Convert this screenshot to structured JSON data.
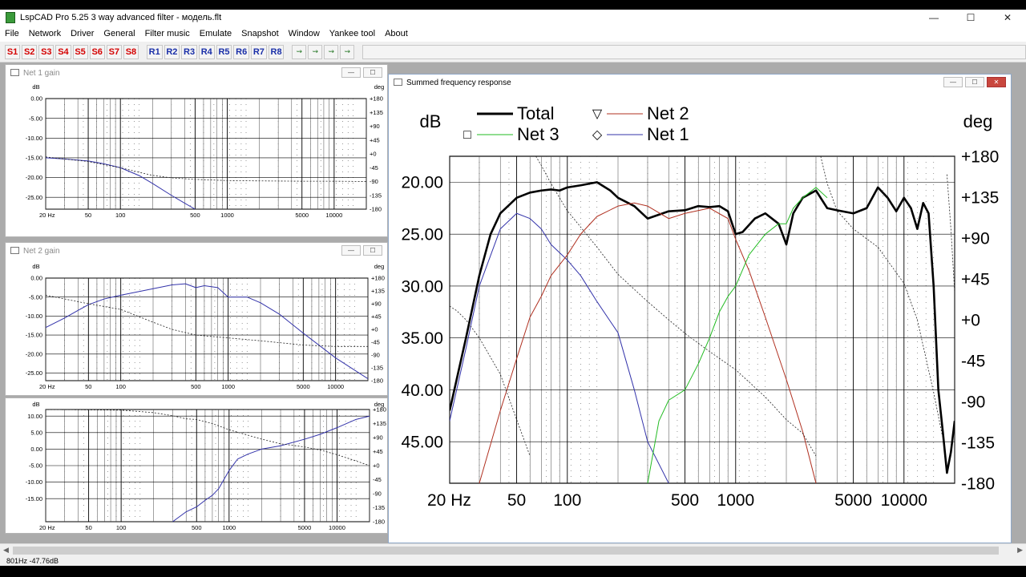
{
  "window": {
    "title": "LspCAD Pro 5.25 3 way advanced filter - модель.flt",
    "min": "—",
    "max": "☐",
    "close": "✕"
  },
  "menu": [
    "File",
    "Network",
    "Driver",
    "General",
    "Filter music",
    "Emulate",
    "Snapshot",
    "Window",
    "Yankee tool",
    "About"
  ],
  "toolbar": {
    "snapshots": [
      "S1",
      "S2",
      "S3",
      "S4",
      "S5",
      "S6",
      "S7",
      "S8"
    ],
    "recalls": [
      "R1",
      "R2",
      "R3",
      "R4",
      "R5",
      "R6",
      "R7",
      "R8"
    ],
    "icon_buttons": [
      "curve-tool-1-icon",
      "curve-tool-2-icon",
      "curve-tool-3-icon",
      "curve-tool-4-icon"
    ]
  },
  "windows": {
    "net1": {
      "title": "Net 1 gain"
    },
    "net2": {
      "title": "Net 2 gain"
    },
    "summed": {
      "title": "Summed frequency response"
    }
  },
  "colors": {
    "total": "#000000",
    "net1": "#3333aa",
    "net2": "#b03020",
    "net3": "#22bb22",
    "phase": "#222222"
  },
  "status": {
    "text": "801Hz  -47.76dB"
  },
  "chart_data": [
    {
      "id": "net1",
      "type": "line",
      "ylabel": "dB",
      "y2label": "deg",
      "x_scale": "log",
      "xlim": [
        20,
        20000
      ],
      "ylim": [
        -28,
        0
      ],
      "y_ticks": [
        "0.00",
        "-5.00",
        "-10.00",
        "-15.00",
        "-20.00",
        "-25.00"
      ],
      "y2_ticks": [
        "+180",
        "+135",
        "+90",
        "+45",
        "+0",
        "-45",
        "-90",
        "-135",
        "-180"
      ],
      "x_ticks": [
        "20 Hz",
        "50",
        "100",
        "500",
        "1000",
        "5000",
        "10000"
      ],
      "series": [
        {
          "role": "gain",
          "x": [
            20,
            30,
            50,
            70,
            100,
            150,
            200,
            300,
            400,
            500
          ],
          "y": [
            -15.0,
            -15.3,
            -15.8,
            -16.5,
            -17.5,
            -19.5,
            -21.5,
            -24.5,
            -26.5,
            -28.0
          ]
        },
        {
          "role": "phase",
          "x": [
            20,
            50,
            100,
            150,
            200,
            300,
            500,
            1000,
            2000,
            5000,
            10000,
            20000
          ],
          "y": [
            -10,
            -25,
            -45,
            -60,
            -70,
            -78,
            -83,
            -87,
            -88,
            -89,
            -89,
            -90
          ]
        }
      ]
    },
    {
      "id": "net2",
      "type": "line",
      "ylabel": "dB",
      "y2label": "deg",
      "x_scale": "log",
      "xlim": [
        20,
        20000
      ],
      "ylim": [
        -27,
        0
      ],
      "y_ticks": [
        "0.00",
        "-5.00",
        "-10.00",
        "-15.00",
        "-20.00",
        "-25.00"
      ],
      "y2_ticks": [
        "+180",
        "+135",
        "+90",
        "+45",
        "+0",
        "-45",
        "-90",
        "-135",
        "-180"
      ],
      "x_ticks": [
        "20 Hz",
        "50",
        "100",
        "500",
        "1000",
        "5000",
        "10000"
      ],
      "series": [
        {
          "role": "gain",
          "x": [
            20,
            30,
            40,
            50,
            70,
            100,
            150,
            200,
            300,
            400,
            500,
            600,
            800,
            1000,
            1500,
            2000,
            3000,
            5000,
            10000,
            20000
          ],
          "y": [
            -13.0,
            -10.5,
            -8.5,
            -7.0,
            -5.5,
            -4.5,
            -3.5,
            -2.8,
            -1.8,
            -1.5,
            -2.5,
            -2.0,
            -2.5,
            -5.0,
            -5.0,
            -6.5,
            -9.5,
            -14.5,
            -21.0,
            -26.5
          ]
        },
        {
          "role": "phase",
          "x": [
            20,
            50,
            100,
            200,
            300,
            500,
            1000,
            2000,
            5000,
            10000,
            20000
          ],
          "y": [
            120,
            90,
            70,
            25,
            0,
            -20,
            -30,
            -40,
            -55,
            -60,
            -60
          ]
        }
      ]
    },
    {
      "id": "net3",
      "type": "line",
      "ylabel": "dB",
      "y2label": "deg",
      "x_scale": "log",
      "xlim": [
        20,
        20000
      ],
      "ylim": [
        -22,
        12
      ],
      "y_ticks": [
        "10.00",
        "5.00",
        "0.00",
        "-5.00",
        "-10.00",
        "-15.00"
      ],
      "y2_ticks": [
        "+180",
        "+135",
        "+90",
        "+45",
        "+0",
        "-45",
        "-90",
        "-135",
        "-180"
      ],
      "x_ticks": [
        "20 Hz",
        "50",
        "100",
        "500",
        "1000",
        "5000",
        "10000"
      ],
      "series": [
        {
          "role": "gain",
          "x": [
            300,
            400,
            500,
            600,
            700,
            800,
            1000,
            1200,
            1500,
            2000,
            3000,
            5000,
            7000,
            10000,
            15000,
            20000
          ],
          "y": [
            -22.0,
            -19.0,
            -17.5,
            -15.5,
            -14.0,
            -12.0,
            -6.5,
            -3.0,
            -1.5,
            0.0,
            1.0,
            3.0,
            4.5,
            6.5,
            9.0,
            10.0
          ]
        },
        {
          "role": "phase",
          "x": [
            20,
            100,
            200,
            300,
            400,
            500,
            700,
            1000,
            2000,
            3000,
            5000,
            7000,
            10000,
            15000,
            20000
          ],
          "y": [
            180,
            178,
            170,
            160,
            150,
            148,
            135,
            115,
            85,
            70,
            60,
            50,
            35,
            15,
            0
          ]
        }
      ]
    },
    {
      "id": "summed",
      "type": "line",
      "ylabel": "dB",
      "y2label": "deg",
      "x_scale": "log",
      "xlim": [
        20,
        20000
      ],
      "ylim": [
        -49,
        -17.5
      ],
      "y_ticks": [
        "20.00",
        "25.00",
        "30.00",
        "35.00",
        "40.00",
        "45.00"
      ],
      "y2_ticks": [
        "+180",
        "+135",
        "+90",
        "+45",
        "+0",
        "-45",
        "-90",
        "-135",
        "-180"
      ],
      "x_ticks": [
        "20 Hz",
        "50",
        "100",
        "500",
        "1000",
        "5000",
        "10000"
      ],
      "legend": [
        {
          "name": "Total",
          "marker": ""
        },
        {
          "name": "Net 2",
          "marker": "▽"
        },
        {
          "name": "Net 3",
          "marker": "□"
        },
        {
          "name": "Net 1",
          "marker": "◇"
        }
      ],
      "series": [
        {
          "name": "Total",
          "x": [
            20,
            25,
            30,
            35,
            40,
            50,
            60,
            70,
            80,
            90,
            100,
            120,
            150,
            180,
            200,
            250,
            300,
            400,
            500,
            600,
            700,
            800,
            900,
            1000,
            1100,
            1300,
            1500,
            1800,
            2000,
            2200,
            2500,
            3000,
            3500,
            4000,
            5000,
            6000,
            7000,
            8000,
            9000,
            10000,
            11000,
            12000,
            13000,
            14000,
            15000,
            16000,
            17000,
            18000,
            19000,
            20000
          ],
          "y": [
            -42,
            -35,
            -29,
            -25,
            -23,
            -21.5,
            -21,
            -20.8,
            -20.7,
            -20.8,
            -20.5,
            -20.3,
            -20.0,
            -20.8,
            -21.5,
            -22.3,
            -23.5,
            -22.8,
            -22.7,
            -22.3,
            -22.4,
            -22.3,
            -22.8,
            -25.0,
            -24.8,
            -23.5,
            -23.0,
            -24.0,
            -26.0,
            -23.0,
            -21.5,
            -20.8,
            -22.5,
            -22.7,
            -23.0,
            -22.5,
            -20.5,
            -21.5,
            -22.8,
            -21.5,
            -22.5,
            -24.5,
            -22.0,
            -23.0,
            -30,
            -40,
            -44,
            -48,
            -46,
            -43
          ]
        },
        {
          "name": "Net 1",
          "x": [
            20,
            25,
            30,
            40,
            50,
            60,
            70,
            80,
            100,
            120,
            150,
            200,
            250,
            300,
            400
          ],
          "y": [
            -43,
            -36,
            -30,
            -24.5,
            -23.0,
            -23.5,
            -24.5,
            -26,
            -27.5,
            -29,
            -31.5,
            -34.5,
            -40,
            -45,
            -49
          ]
        },
        {
          "name": "Net 2",
          "x": [
            30,
            40,
            50,
            60,
            70,
            80,
            100,
            120,
            150,
            200,
            250,
            300,
            400,
            500,
            700,
            900,
            1000,
            1200,
            1500,
            2000,
            2500,
            3000
          ],
          "y": [
            -49,
            -42,
            -37,
            -33,
            -31,
            -29,
            -27,
            -25,
            -23.3,
            -22.3,
            -22.0,
            -22.3,
            -23.5,
            -23.0,
            -22.5,
            -23.5,
            -25.5,
            -28.5,
            -33,
            -39,
            -44,
            -49
          ]
        },
        {
          "name": "Net 3",
          "x": [
            300,
            350,
            400,
            500,
            600,
            700,
            800,
            900,
            1000,
            1200,
            1500,
            1800,
            2000,
            2200,
            2500,
            3000,
            3500
          ],
          "y": [
            -49,
            -43,
            -41,
            -40,
            -37.5,
            -35.0,
            -32.5,
            -31.0,
            -30.0,
            -27.0,
            -25.0,
            -24.0,
            -24.0,
            -22.5,
            -21.5,
            -20.5,
            -21.5
          ]
        },
        {
          "name": "Phase Total",
          "role": "phase",
          "x": [
            20,
            22,
            25,
            30,
            40,
            50,
            60,
            65,
            70,
            80,
            100,
            150,
            200,
            300,
            400,
            500,
            700,
            1000,
            1500,
            2000,
            2500,
            3000,
            3200,
            3500,
            4000,
            5000,
            7000,
            10000,
            12000,
            15000,
            17000,
            18000,
            19000,
            20000
          ],
          "y": [
            15,
            10,
            0,
            -20,
            -60,
            -110,
            -150,
            180,
            170,
            150,
            120,
            80,
            50,
            20,
            0,
            -15,
            -35,
            -55,
            -85,
            -110,
            -125,
            -150,
            180,
            150,
            120,
            100,
            80,
            40,
            0,
            -80,
            -130,
            160,
            100,
            30
          ]
        }
      ]
    }
  ]
}
